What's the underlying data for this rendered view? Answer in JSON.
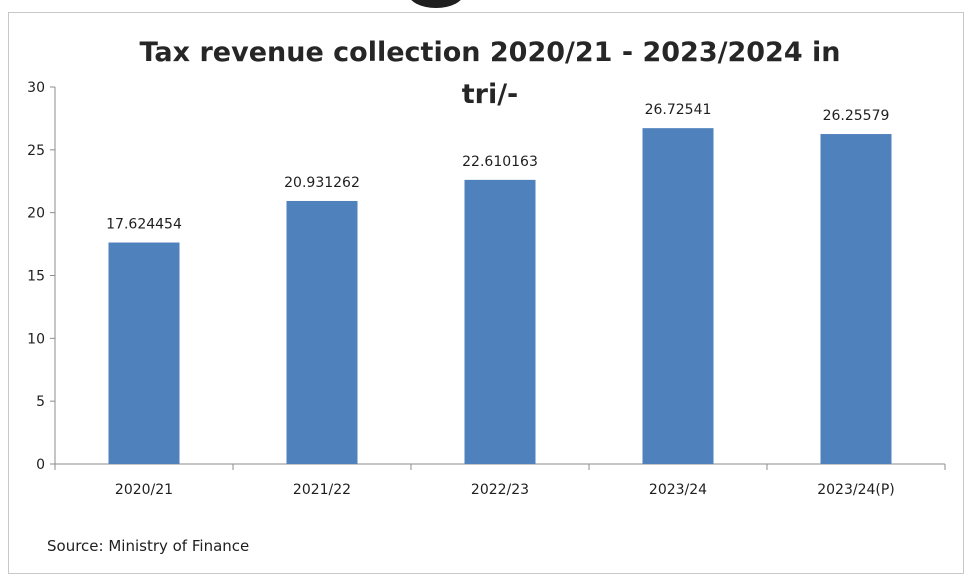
{
  "chart_data": {
    "type": "bar",
    "title": "Tax revenue collection 2020/21 - 2023/2024 in tri/-",
    "xlabel": "",
    "ylabel": "",
    "categories": [
      "2020/21",
      "2021/22",
      "2022/23",
      "2023/24",
      "2023/24(P)"
    ],
    "values": [
      17.624454,
      20.931262,
      22.610163,
      26.72541,
      26.25579
    ],
    "value_labels": [
      "17.624454",
      "20.931262",
      "22.610163",
      "26.72541",
      "26.25579"
    ],
    "ylim": [
      0,
      30
    ],
    "yticks": [
      0,
      5,
      10,
      15,
      20,
      25,
      30
    ],
    "grid": false,
    "legend": "none",
    "bar_color": "#4f81bd",
    "source": "Source: Ministry of Finance"
  }
}
